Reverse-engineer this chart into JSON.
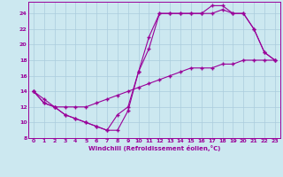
{
  "line1_x": [
    0,
    1,
    2,
    3,
    4,
    5,
    6,
    7,
    8,
    9,
    10,
    11,
    12,
    13,
    14,
    15,
    16,
    17,
    18,
    19,
    20,
    21,
    22,
    23
  ],
  "line1_y": [
    14.0,
    12.5,
    12.0,
    11.0,
    10.5,
    10.0,
    9.5,
    9.0,
    9.0,
    11.5,
    16.5,
    19.5,
    24.0,
    24.0,
    24.0,
    24.0,
    24.0,
    24.0,
    24.5,
    24.0,
    24.0,
    22.0,
    19.0,
    18.0
  ],
  "line2_x": [
    0,
    1,
    2,
    3,
    4,
    5,
    6,
    7,
    8,
    9,
    10,
    11,
    12,
    13,
    14,
    15,
    16,
    17,
    18,
    19,
    20,
    21,
    22,
    23
  ],
  "line2_y": [
    14.0,
    12.5,
    12.0,
    11.0,
    10.5,
    10.0,
    9.5,
    9.0,
    11.0,
    12.0,
    16.5,
    21.0,
    24.0,
    24.0,
    24.0,
    24.0,
    24.0,
    25.0,
    25.0,
    24.0,
    24.0,
    22.0,
    19.0,
    18.0
  ],
  "line3_x": [
    0,
    1,
    2,
    3,
    4,
    5,
    6,
    7,
    8,
    9,
    10,
    11,
    12,
    13,
    14,
    15,
    16,
    17,
    18,
    19,
    20,
    21,
    22,
    23
  ],
  "line3_y": [
    14.0,
    13.0,
    12.0,
    12.0,
    12.0,
    12.0,
    12.5,
    13.0,
    13.5,
    14.0,
    14.5,
    15.0,
    15.5,
    16.0,
    16.5,
    17.0,
    17.0,
    17.0,
    17.5,
    17.5,
    18.0,
    18.0,
    18.0,
    18.0
  ],
  "line_color": "#990099",
  "bg_color": "#cce8f0",
  "grid_color": "#aaccdd",
  "xlabel": "Windchill (Refroidissement éolien,°C)",
  "xlim": [
    -0.5,
    23.5
  ],
  "ylim": [
    8,
    25.5
  ],
  "yticks": [
    8,
    10,
    12,
    14,
    16,
    18,
    20,
    22,
    24
  ],
  "xticks": [
    0,
    1,
    2,
    3,
    4,
    5,
    6,
    7,
    8,
    9,
    10,
    11,
    12,
    13,
    14,
    15,
    16,
    17,
    18,
    19,
    20,
    21,
    22,
    23
  ]
}
